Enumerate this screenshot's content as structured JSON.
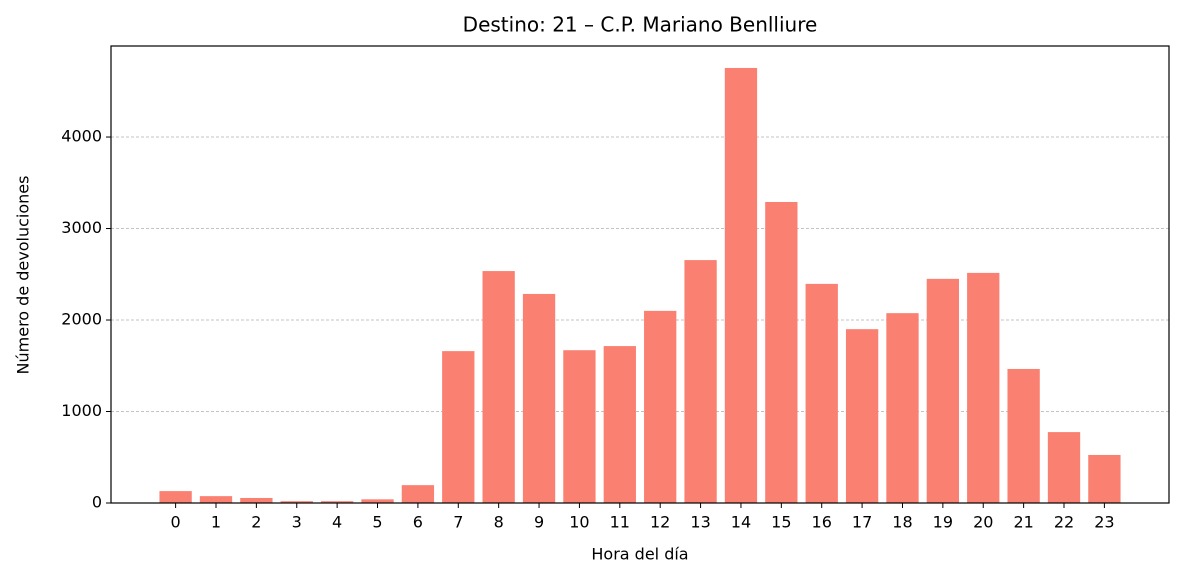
{
  "chart_data": {
    "type": "bar",
    "title": "Destino: 21 – C.P. Mariano Benlliure",
    "x_label": "Hora del día",
    "y_label": "Número de devoluciones",
    "categories": [
      "0",
      "1",
      "2",
      "3",
      "4",
      "5",
      "6",
      "7",
      "8",
      "9",
      "10",
      "11",
      "12",
      "13",
      "14",
      "15",
      "16",
      "17",
      "18",
      "19",
      "20",
      "21",
      "22",
      "23"
    ],
    "values": [
      130,
      75,
      55,
      20,
      20,
      40,
      195,
      1660,
      2535,
      2285,
      1670,
      1715,
      2100,
      2655,
      4755,
      3290,
      2395,
      1900,
      2075,
      2450,
      2515,
      1465,
      775,
      525
    ],
    "color": "#fa8072",
    "ylim": [
      0,
      4995
    ],
    "yticks": [
      0,
      1000,
      2000,
      3000,
      4000
    ],
    "grid": true
  }
}
